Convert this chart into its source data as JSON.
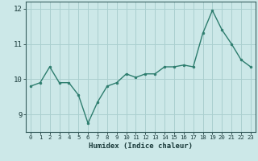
{
  "x": [
    0,
    1,
    2,
    3,
    4,
    5,
    6,
    7,
    8,
    9,
    10,
    11,
    12,
    13,
    14,
    15,
    16,
    17,
    18,
    19,
    20,
    21,
    22,
    23
  ],
  "y": [
    9.8,
    9.9,
    10.35,
    9.9,
    9.9,
    9.55,
    8.75,
    9.35,
    9.8,
    9.9,
    10.15,
    10.05,
    10.15,
    10.15,
    10.35,
    10.35,
    10.4,
    10.35,
    11.3,
    11.95,
    11.4,
    11.0,
    10.55,
    10.35
  ],
  "xlabel": "Humidex (Indice chaleur)",
  "ylim": [
    8.5,
    12.2
  ],
  "xlim": [
    -0.5,
    23.5
  ],
  "yticks": [
    9,
    10,
    11,
    12
  ],
  "xticks": [
    0,
    1,
    2,
    3,
    4,
    5,
    6,
    7,
    8,
    9,
    10,
    11,
    12,
    13,
    14,
    15,
    16,
    17,
    18,
    19,
    20,
    21,
    22,
    23
  ],
  "line_color": "#2d7d6e",
  "marker_color": "#2d7d6e",
  "bg_color": "#cce8e8",
  "grid_color": "#aacfcf",
  "axis_color": "#3a6060",
  "text_color": "#1a3a3a",
  "font_family": "monospace"
}
